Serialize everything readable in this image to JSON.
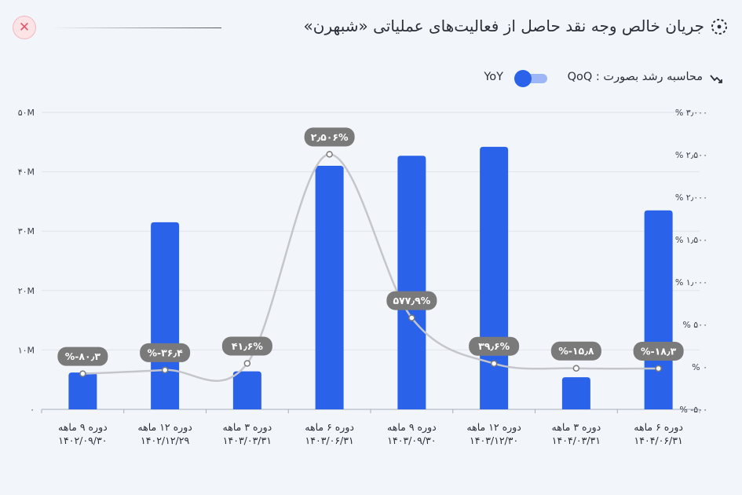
{
  "header": {
    "title": "جریان خالص وجه نقد حاصل از فعالیت‌های عملیاتی «شبهرن»",
    "close_label": "✕"
  },
  "controls": {
    "growth_label": "محاسبه رشد بصورت : QoQ",
    "yoy_label": "YoY",
    "growth_mode": "YoY"
  },
  "colors": {
    "bar": "#2a62ea",
    "line": "#c4c6cc",
    "pill": "#7a7a7a",
    "grid": "#dfe3ea"
  },
  "chart_data": {
    "type": "bar",
    "categories": [
      [
        "دوره ۹ ماهه",
        "۱۴۰۲/۰۹/۳۰"
      ],
      [
        "دوره ۱۲ ماهه",
        "۱۴۰۲/۱۲/۲۹"
      ],
      [
        "دوره ۳ ماهه",
        "۱۴۰۳/۰۳/۳۱"
      ],
      [
        "دوره ۶ ماهه",
        "۱۴۰۳/۰۶/۳۱"
      ],
      [
        "دوره ۹ ماهه",
        "۱۴۰۳/۰۹/۳۰"
      ],
      [
        "دوره ۱۲ ماهه",
        "۱۴۰۳/۱۲/۳۰"
      ],
      [
        "دوره ۳ ماهه",
        "۱۴۰۴/۰۳/۳۱"
      ],
      [
        "دوره ۶ ماهه",
        "۱۴۰۴/۰۶/۳۱"
      ]
    ],
    "series": [
      {
        "type": "bar",
        "axis": "left",
        "values": [
          6.2,
          31.5,
          6.4,
          41.0,
          42.7,
          44.2,
          5.4,
          33.5
        ]
      },
      {
        "type": "line",
        "axis": "right",
        "values": [
          -80.3,
          -36.4,
          41.6,
          2506,
          577.9,
          39.6,
          -15.8,
          -18.3
        ],
        "labels": [
          "%-۸۰٫۳",
          "%-۳۶٫۴",
          "۴۱٫۶%",
          "۲٫۵۰۶%",
          "۵۷۷٫۹%",
          "۳۹٫۶%",
          "%-۱۵٫۸",
          "%-۱۸٫۳"
        ]
      }
    ],
    "y_left": {
      "min": 0,
      "max": 50,
      "ticks": [
        0,
        10,
        20,
        30,
        40,
        50
      ],
      "tick_labels": [
        "۰",
        "۱۰M",
        "۲۰M",
        "۳۰M",
        "۴۰M",
        "۵۰M"
      ]
    },
    "y_right": {
      "min": -500,
      "max": 3000,
      "ticks": [
        -500,
        0,
        500,
        1000,
        1500,
        2000,
        2500,
        3000
      ],
      "tick_labels": [
        "% -۵۰۰",
        "% ۰",
        "% ۵۰۰",
        "% ۱٫۰۰۰",
        "% ۱٫۵۰۰",
        "% ۲٫۰۰۰",
        "% ۲٫۵۰۰",
        "% ۳٫۰۰۰"
      ]
    },
    "grid": true,
    "legend": "none"
  }
}
